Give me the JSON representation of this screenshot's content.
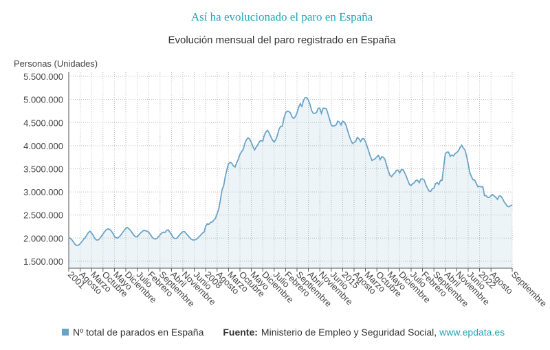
{
  "chart_data": {
    "type": "line",
    "title": "Así ha evolucionado el paro en España",
    "subtitle": "Evolución mensual del paro registrado en España",
    "y_label": "Personas (Unidades)",
    "source_label": "Fuente:",
    "source_text": "Ministerio de Empleo y Seguridad Social,",
    "source_link": "www.epdata.es",
    "grid": true,
    "ylim": [
      1350000,
      5590000
    ],
    "yticks": [
      {
        "value": 1500000,
        "label": "1.500.000"
      },
      {
        "value": 2000000,
        "label": "2.000.000"
      },
      {
        "value": 2500000,
        "label": "2.500.000"
      },
      {
        "value": 3000000,
        "label": "3.000.000"
      },
      {
        "value": 3500000,
        "label": "3.500.000"
      },
      {
        "value": 4000000,
        "label": "4.000.000"
      },
      {
        "value": 4500000,
        "label": "4.500.000"
      },
      {
        "value": 5000000,
        "label": "5.000.000"
      },
      {
        "value": 5500000,
        "label": "5.500.000"
      }
    ],
    "categories": [
      "2001",
      null,
      null,
      null,
      null,
      null,
      null,
      "Agosto",
      null,
      null,
      null,
      null,
      null,
      null,
      "Marzo",
      null,
      null,
      null,
      null,
      null,
      null,
      "Octubre",
      null,
      null,
      null,
      null,
      null,
      null,
      "Mayo",
      null,
      null,
      null,
      null,
      null,
      null,
      "Diciembre",
      null,
      null,
      null,
      null,
      null,
      null,
      "Julio",
      null,
      null,
      null,
      null,
      null,
      null,
      "Febrero",
      null,
      null,
      null,
      null,
      null,
      null,
      "Septiembre",
      null,
      null,
      null,
      null,
      null,
      null,
      "Abril",
      null,
      null,
      null,
      null,
      null,
      null,
      "Noviembre",
      null,
      null,
      null,
      null,
      null,
      null,
      "Junio",
      null,
      null,
      null,
      null,
      null,
      null,
      "2008",
      null,
      null,
      null,
      null,
      null,
      null,
      "Agosto",
      null,
      null,
      null,
      null,
      null,
      null,
      "Marzo",
      null,
      null,
      null,
      null,
      null,
      null,
      "Octubre",
      null,
      null,
      null,
      null,
      null,
      null,
      "Mayo",
      null,
      null,
      null,
      null,
      null,
      null,
      "Diciembre",
      null,
      null,
      null,
      null,
      null,
      null,
      "Julio",
      null,
      null,
      null,
      null,
      null,
      null,
      "Febrero",
      null,
      null,
      null,
      null,
      null,
      null,
      "Septiembre",
      null,
      null,
      null,
      null,
      null,
      null,
      "Abril",
      null,
      null,
      null,
      null,
      null,
      null,
      "Noviembre",
      null,
      null,
      null,
      null,
      null,
      null,
      "Junio",
      null,
      null,
      null,
      null,
      null,
      null,
      "2015",
      null,
      null,
      null,
      null,
      null,
      null,
      "Agosto",
      null,
      null,
      null,
      null,
      null,
      null,
      "Marzo",
      null,
      null,
      null,
      null,
      null,
      null,
      "Octubre",
      null,
      null,
      null,
      null,
      null,
      null,
      "Mayo",
      null,
      null,
      null,
      null,
      null,
      null,
      "Diciembre",
      null,
      null,
      null,
      null,
      null,
      null,
      "Julio",
      null,
      null,
      null,
      null,
      null,
      null,
      "Febrero",
      null,
      null,
      null,
      null,
      null,
      null,
      "Septiembre",
      null,
      null,
      null,
      null,
      null,
      null,
      "Abril",
      null,
      null,
      null,
      null,
      null,
      null,
      "Noviembre",
      null,
      null,
      null,
      null,
      null,
      null,
      "Junio",
      null,
      null,
      null,
      null,
      null,
      null,
      "2022",
      null,
      null,
      null,
      null,
      null,
      null,
      "Agosto",
      null,
      null,
      null,
      null,
      null,
      null,
      null,
      null,
      null,
      null,
      null,
      null,
      "Septiembre"
    ],
    "series": [
      {
        "name": "Nº total de parados en España",
        "color": "#6aa3c8",
        "values": [
          2020000,
          1995000,
          1960000,
          1910000,
          1860000,
          1840000,
          1850000,
          1880000,
          1920000,
          1970000,
          2010000,
          2060000,
          2120000,
          2150000,
          2110000,
          2060000,
          1990000,
          1960000,
          1960000,
          1990000,
          2040000,
          2090000,
          2140000,
          2180000,
          2200000,
          2190000,
          2160000,
          2110000,
          2040000,
          2010000,
          2000000,
          2030000,
          2070000,
          2120000,
          2170000,
          2210000,
          2230000,
          2200000,
          2160000,
          2110000,
          2060000,
          2030000,
          2030000,
          2070000,
          2110000,
          2140000,
          2170000,
          2160000,
          2150000,
          2130000,
          2080000,
          2030000,
          1990000,
          1980000,
          1990000,
          2030000,
          2070000,
          2110000,
          2130000,
          2120000,
          2170000,
          2180000,
          2130000,
          2080000,
          2020000,
          1990000,
          1990000,
          2030000,
          2070000,
          2110000,
          2140000,
          2140000,
          2100000,
          2060000,
          2020000,
          1980000,
          1960000,
          1960000,
          1970000,
          2000000,
          2030000,
          2070000,
          2110000,
          2130000,
          2260000,
          2310000,
          2300000,
          2340000,
          2350000,
          2390000,
          2430000,
          2530000,
          2630000,
          2820000,
          3040000,
          3130000,
          3330000,
          3480000,
          3610000,
          3640000,
          3620000,
          3560000,
          3540000,
          3630000,
          3710000,
          3810000,
          3870000,
          3920000,
          4050000,
          4130000,
          4170000,
          4140000,
          4070000,
          3980000,
          3910000,
          3970000,
          4020000,
          4090000,
          4110000,
          4100000,
          4230000,
          4300000,
          4330000,
          4270000,
          4190000,
          4120000,
          4080000,
          4130000,
          4230000,
          4360000,
          4420000,
          4420000,
          4600000,
          4710000,
          4750000,
          4740000,
          4710000,
          4620000,
          4590000,
          4630000,
          4710000,
          4830000,
          4910000,
          4850000,
          4980000,
          5040000,
          5040000,
          4990000,
          4890000,
          4760000,
          4700000,
          4700000,
          4720000,
          4810000,
          4810000,
          4700000,
          4810000,
          4810000,
          4800000,
          4690000,
          4570000,
          4450000,
          4420000,
          4430000,
          4450000,
          4530000,
          4510000,
          4450000,
          4530000,
          4510000,
          4450000,
          4330000,
          4220000,
          4120000,
          4050000,
          4070000,
          4090000,
          4180000,
          4150000,
          4090000,
          4150000,
          4150000,
          4090000,
          3990000,
          3880000,
          3770000,
          3680000,
          3700000,
          3720000,
          3760000,
          3790000,
          3700000,
          3760000,
          3750000,
          3700000,
          3570000,
          3460000,
          3360000,
          3330000,
          3380000,
          3410000,
          3470000,
          3470000,
          3410000,
          3480000,
          3480000,
          3420000,
          3340000,
          3250000,
          3160000,
          3140000,
          3180000,
          3200000,
          3250000,
          3250000,
          3200000,
          3280000,
          3280000,
          3260000,
          3160000,
          3080000,
          3020000,
          3010000,
          3070000,
          3080000,
          3180000,
          3200000,
          3160000,
          3250000,
          3250000,
          3550000,
          3830000,
          3860000,
          3860000,
          3770000,
          3800000,
          3780000,
          3830000,
          3850000,
          3890000,
          3960000,
          4010000,
          3950000,
          3910000,
          3780000,
          3610000,
          3420000,
          3330000,
          3260000,
          3260000,
          3180000,
          3110000,
          3120000,
          3110000,
          3110000,
          2920000,
          2920000,
          2880000,
          2880000,
          2920000,
          2940000,
          2910000,
          2880000,
          2840000,
          2910000,
          2910000,
          2860000,
          2790000,
          2740000,
          2690000,
          2680000,
          2700000,
          2720000
        ]
      }
    ]
  }
}
